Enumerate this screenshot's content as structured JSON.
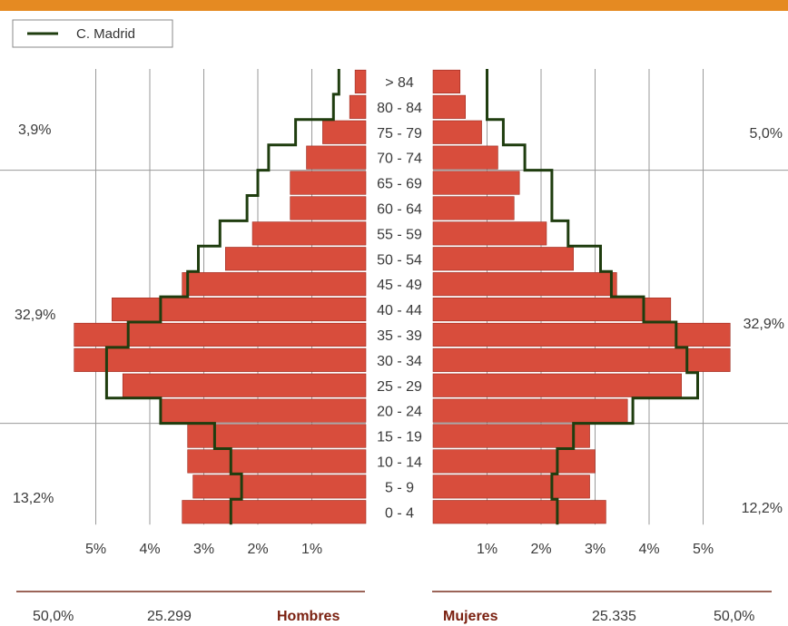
{
  "colors": {
    "top_band": "#e58a22",
    "bar": "#d84d3c",
    "bar_edge": "#9b2b1f",
    "outline": "#1f3d0f",
    "grid": "#9a9a9a",
    "footer_line": "#7a3020"
  },
  "legend": {
    "label": "C. Madrid"
  },
  "chart_data": {
    "type": "bar",
    "orientation": "horizontal",
    "categories": [
      "0 - 4",
      "5 - 9",
      "10 - 14",
      "15 - 19",
      "20 - 24",
      "25 - 29",
      "30 - 34",
      "35 - 39",
      "40 - 44",
      "45 - 49",
      "50 - 54",
      "55 - 59",
      "60 - 64",
      "65 - 69",
      "70 - 74",
      "75 - 79",
      "80 - 84",
      "> 84"
    ],
    "series": [
      {
        "side": "Hombres",
        "values": [
          3.4,
          3.2,
          3.3,
          3.3,
          3.8,
          4.5,
          5.4,
          5.4,
          4.7,
          3.4,
          2.6,
          2.1,
          1.4,
          1.4,
          1.1,
          0.8,
          0.3,
          0.2
        ]
      },
      {
        "side": "Mujeres",
        "values": [
          3.2,
          2.9,
          3.0,
          2.9,
          3.6,
          4.6,
          5.5,
          5.5,
          4.4,
          3.4,
          2.6,
          2.1,
          1.5,
          1.6,
          1.2,
          0.9,
          0.6,
          0.5
        ]
      },
      {
        "name": "C. Madrid",
        "side": "Hombres",
        "values": [
          2.5,
          2.3,
          2.5,
          2.8,
          3.8,
          4.8,
          4.8,
          4.4,
          3.8,
          3.3,
          3.1,
          2.7,
          2.2,
          2.0,
          1.8,
          1.3,
          0.6,
          0.5
        ]
      },
      {
        "name": "C. Madrid",
        "side": "Mujeres",
        "values": [
          2.3,
          2.2,
          2.3,
          2.6,
          3.7,
          4.9,
          4.7,
          4.5,
          3.9,
          3.3,
          3.1,
          2.5,
          2.2,
          2.2,
          1.7,
          1.3,
          1.0,
          1.0
        ]
      }
    ],
    "xlim": [
      0,
      5.5
    ],
    "x_ticks_left": [
      "5%",
      "4%",
      "3%",
      "2%",
      "1%"
    ],
    "x_ticks_right": [
      "1%",
      "2%",
      "3%",
      "4%",
      "5%"
    ],
    "group_labels": {
      "left": [
        "3,9%",
        "32,9%",
        "13,2%"
      ],
      "right": [
        "5,0%",
        "32,9%",
        "12,2%"
      ]
    },
    "footer": {
      "left_pct": "50,0%",
      "left_count": "25.299",
      "left_sex": "Hombres",
      "right_sex": "Mujeres",
      "right_count": "25.335",
      "right_pct": "50,0%"
    }
  }
}
